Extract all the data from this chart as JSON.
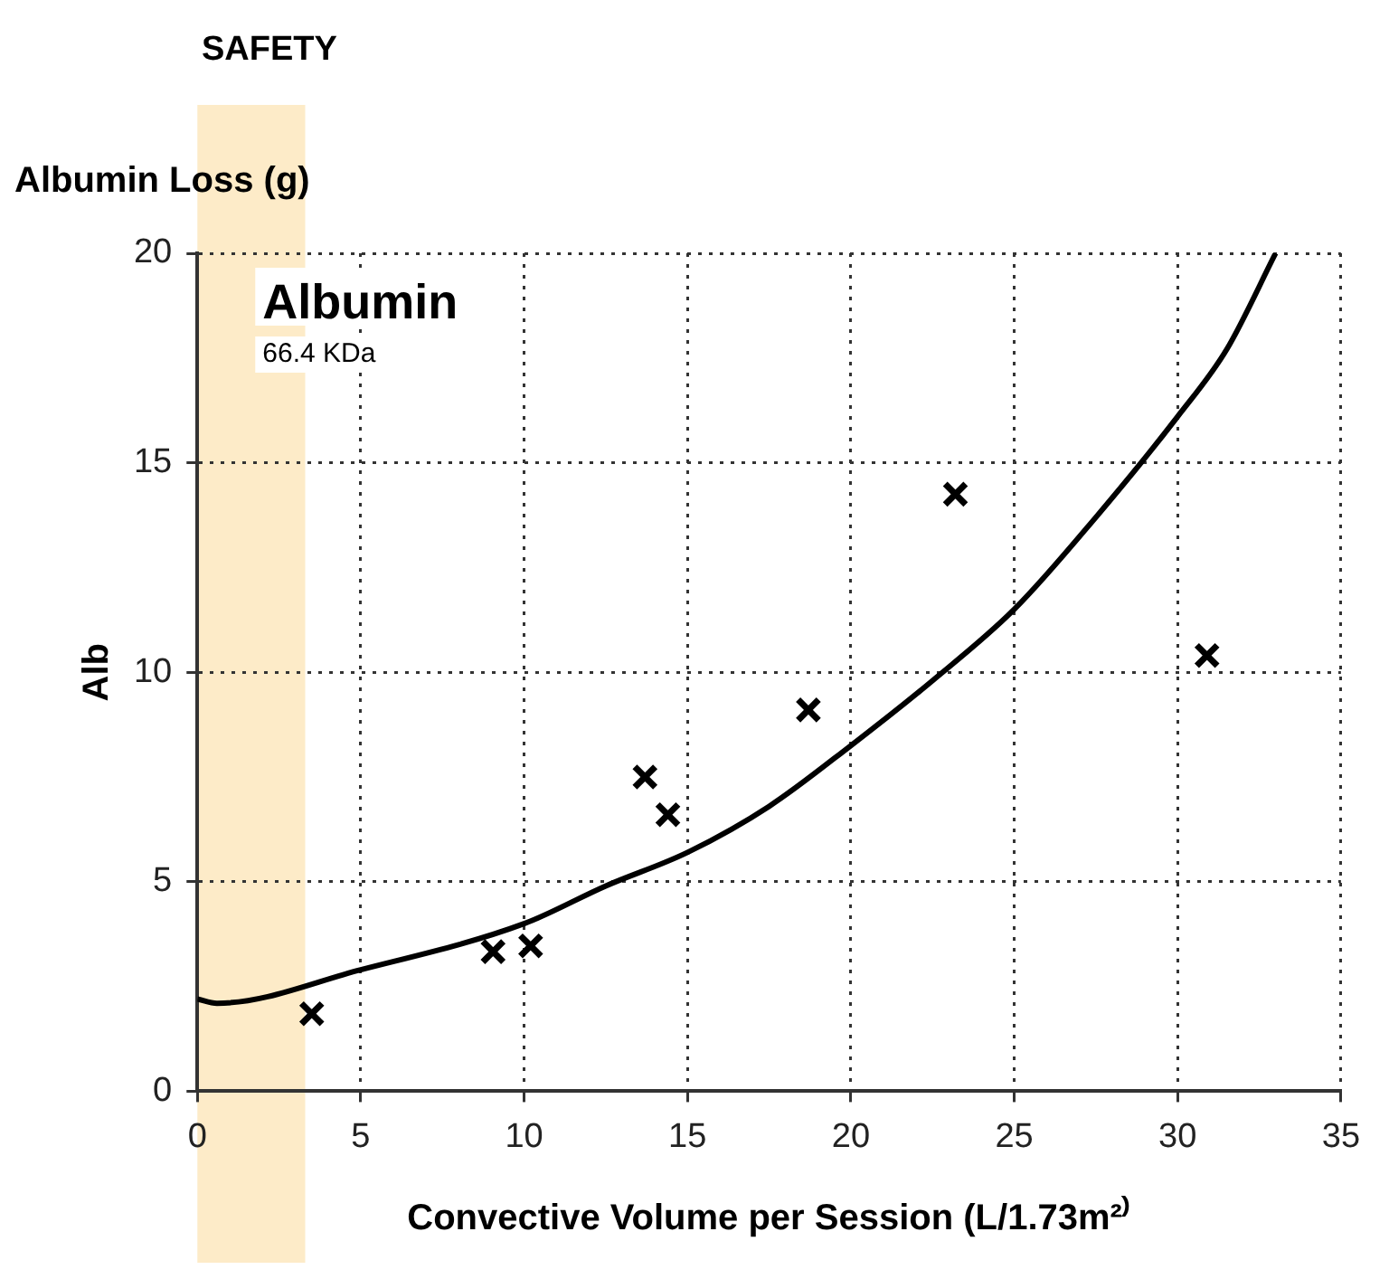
{
  "chart_data": {
    "type": "scatter",
    "title": "Albumin Loss (g)",
    "xlabel": "Convective Volume per Session (L/1.73m²⁾",
    "ylabel": "Alb",
    "annotations": [
      "Albumin",
      "66.4 KDa"
    ],
    "bands": [
      {
        "axis": "x",
        "from": 0,
        "to": 3.3,
        "label": "SAFETY",
        "color": "#fdebc8"
      }
    ],
    "series": [
      {
        "color": "#000000",
        "marker": "cross",
        "x": [
          3.5,
          9.05,
          10.2,
          13.7,
          14.4,
          18.7,
          23.2,
          30.9
        ],
        "values": [
          1.85,
          3.33,
          3.47,
          7.5,
          6.6,
          9.1,
          14.25,
          10.4
        ]
      },
      {
        "type": "line",
        "color": "#000000",
        "marker": "none",
        "line_style": "solid",
        "x": [
          0,
          0.6,
          5,
          10,
          12.5,
          15,
          17.5,
          20,
          22.5,
          25,
          27.5,
          30,
          31.5,
          33
        ],
        "values": [
          2.2,
          2.1,
          2.9,
          4.0,
          4.9,
          5.7,
          6.8,
          8.25,
          9.8,
          11.5,
          13.7,
          16.1,
          17.7,
          20
        ]
      }
    ],
    "xlim": [
      0,
      35
    ],
    "xticks": [
      0,
      5,
      10,
      15,
      20,
      25,
      30,
      35
    ],
    "ylim": [
      0,
      20
    ],
    "yticks": [
      0,
      5,
      10,
      15,
      20
    ],
    "grid": true,
    "legend": false
  }
}
